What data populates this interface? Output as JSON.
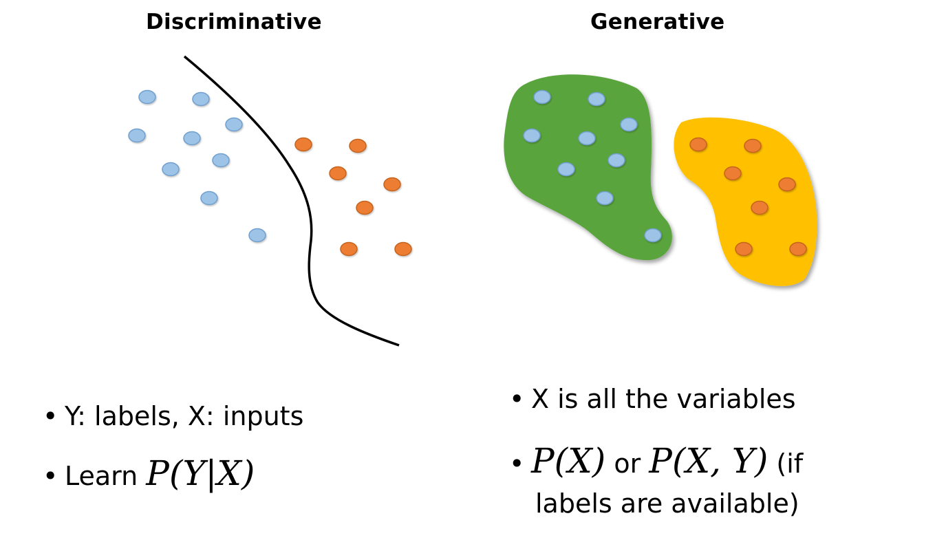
{
  "left_panel": {
    "title": "Discriminative",
    "bullets": [
      {
        "text": "Y: labels, X: inputs"
      },
      {
        "prefix": "Learn ",
        "math": "P(Y|X)"
      }
    ]
  },
  "right_panel": {
    "title": "Generative",
    "bullets": [
      {
        "text": "X is all the variables"
      },
      {
        "math1": "P(X)",
        "mid": " or ",
        "math2": "P(X, Y)",
        "suffix": " (if",
        "line2": "labels are available)"
      }
    ]
  },
  "colors": {
    "class_a_point": "#9dc3e6",
    "class_a_point_stroke": "#6f9fce",
    "class_b_point": "#ed7d31",
    "class_b_point_stroke": "#c4631f",
    "region_a": "#5aa43c",
    "region_b": "#ffc000",
    "boundary": "#000000"
  }
}
